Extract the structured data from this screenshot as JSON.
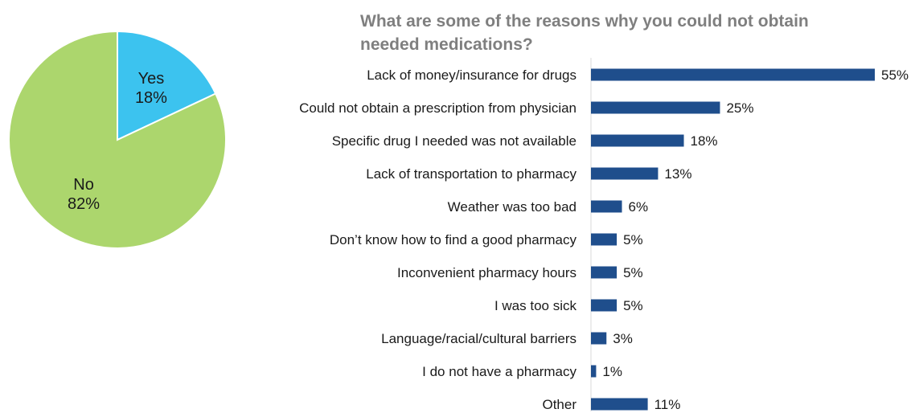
{
  "chart_data": [
    {
      "type": "pie",
      "title": "",
      "slices": [
        {
          "label": "Yes",
          "value": 18,
          "value_label": "18%",
          "color": "#3cc3ef"
        },
        {
          "label": "No",
          "value": 82,
          "value_label": "82%",
          "color": "#acd66d"
        }
      ],
      "slice_border_color": "#ffffff"
    },
    {
      "type": "bar",
      "orientation": "horizontal",
      "title_lines": [
        "What are some of the reasons why you could not obtain",
        "needed medications?"
      ],
      "categories": [
        "Lack of money/insurance for drugs",
        "Could not obtain a prescription from physician",
        "Specific drug I needed was not available",
        "Lack of transportation to pharmacy",
        "Weather was too bad",
        "Don’t know how to find a good pharmacy",
        "Inconvenient pharmacy hours",
        "I was too sick",
        "Language/racial/cultural barriers",
        "I do not have a pharmacy",
        "Other"
      ],
      "values": [
        55,
        25,
        18,
        13,
        6,
        5,
        5,
        5,
        3,
        1,
        11
      ],
      "value_labels": [
        "55%",
        "25%",
        "18%",
        "13%",
        "6%",
        "5%",
        "5%",
        "5%",
        "3%",
        "1%",
        "11%"
      ],
      "xlim": [
        0,
        55
      ],
      "bar_color": "#1f4e8c",
      "axis_color": "#d9d9d9",
      "grid": false
    }
  ]
}
